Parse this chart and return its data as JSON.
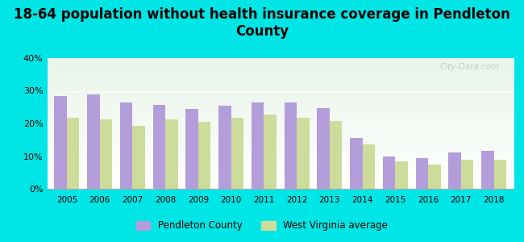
{
  "title": "18-64 population without health insurance coverage in Pendleton\nCounty",
  "years": [
    2005,
    2006,
    2007,
    2008,
    2009,
    2010,
    2011,
    2012,
    2013,
    2014,
    2015,
    2016,
    2017,
    2018
  ],
  "pendleton": [
    28.5,
    29.0,
    26.5,
    25.8,
    24.5,
    25.5,
    26.5,
    26.5,
    24.7,
    15.5,
    9.8,
    9.5,
    11.0,
    11.5
  ],
  "wv_avg": [
    21.8,
    21.2,
    19.3,
    21.2,
    20.5,
    21.8,
    22.8,
    21.8,
    20.7,
    13.5,
    8.5,
    7.5,
    9.0,
    9.0
  ],
  "pendleton_color": "#b39ddb",
  "wv_color": "#cddc9a",
  "bg_color": "#00e5e5",
  "ylim": [
    0,
    40
  ],
  "yticks": [
    0,
    10,
    20,
    30,
    40
  ],
  "title_fontsize": 12,
  "legend_pendleton": "Pendleton County",
  "legend_wv": "West Virginia average",
  "watermark": "City-Data.com"
}
